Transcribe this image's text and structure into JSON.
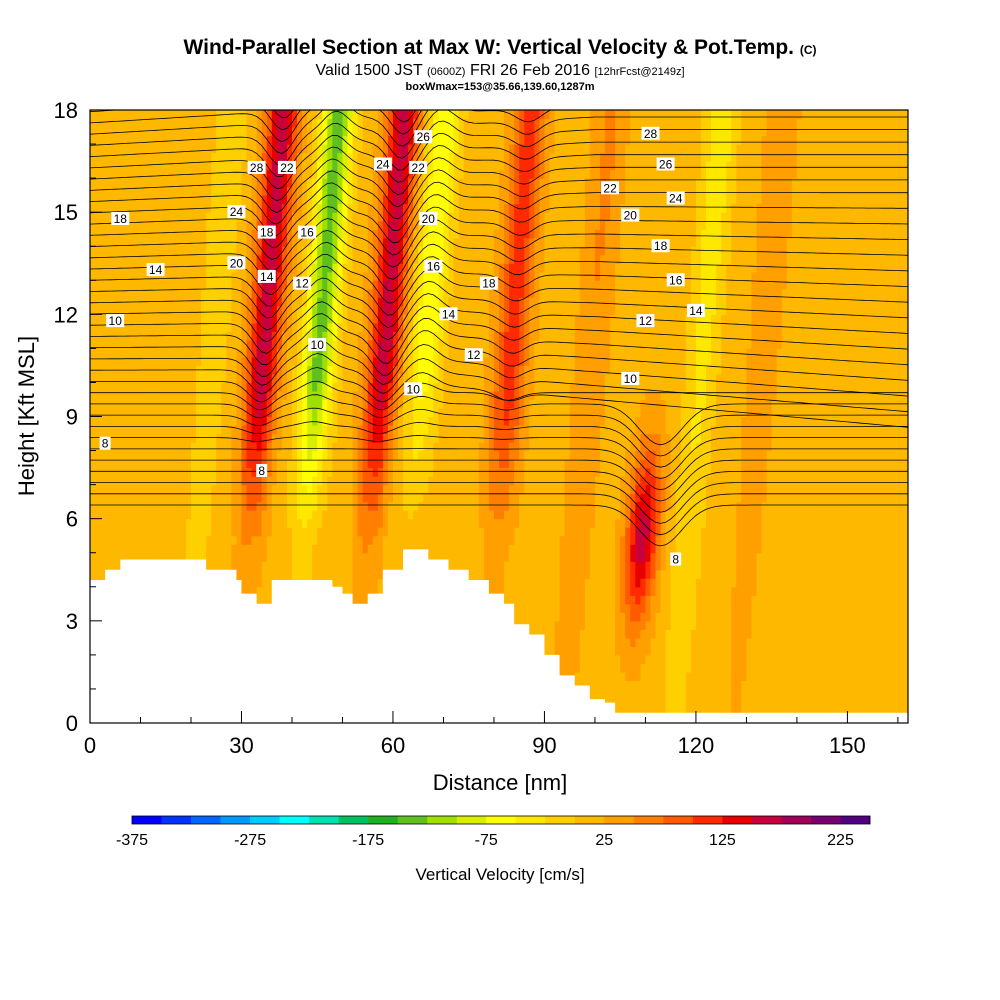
{
  "header": {
    "title": "Wind-Parallel Section at Max W: Vertical Velocity & Pot.Temp.",
    "title_tag": "(C)",
    "valid_prefix": "Valid 1500 JST",
    "valid_utc": "(0600Z)",
    "valid_date": "FRI 26 Feb 2016",
    "forecast": "[12hrFcst@2149z]",
    "box_info": "boxWmax=153@35.66,139.60,1287m"
  },
  "chart_data": {
    "type": "heatmap",
    "xlabel": "Distance [nm]",
    "ylabel": "Height [Kft MSL]",
    "xlim": [
      0,
      162
    ],
    "ylim": [
      0,
      18
    ],
    "x_ticks": [
      0,
      30,
      60,
      90,
      120,
      150
    ],
    "y_ticks": [
      0,
      3,
      6,
      9,
      12,
      15,
      18
    ],
    "colorbar": {
      "label": "Vertical Velocity [cm/s]",
      "min": -375,
      "max": 250,
      "step": 25,
      "tick_values": [
        -375,
        -275,
        -175,
        -75,
        25,
        125,
        225
      ],
      "colors": [
        "#0000ff",
        "#0033ff",
        "#0066ff",
        "#0099ff",
        "#00ccff",
        "#00ffff",
        "#00e0b0",
        "#00c060",
        "#20b020",
        "#60c020",
        "#a0e000",
        "#d8f000",
        "#ffff00",
        "#ffe800",
        "#ffd000",
        "#ffb800",
        "#ff9f00",
        "#ff8000",
        "#ff5a00",
        "#ff2a00",
        "#e80000",
        "#c8003c",
        "#a0005a",
        "#780070",
        "#500080"
      ]
    },
    "background_w": 15,
    "updraft_downdraft_bands": [
      {
        "x_center": 25,
        "w": -40
      },
      {
        "x_center": 35,
        "w": 150
      },
      {
        "x_center": 46,
        "w": -150
      },
      {
        "x_center": 59,
        "w": 150
      },
      {
        "x_center": 67,
        "w": -90
      },
      {
        "x_center": 84,
        "w": 100
      },
      {
        "x_center": 100,
        "w": 40
      },
      {
        "x_center": 113,
        "w": 150
      },
      {
        "x_center": 122,
        "w": -60
      },
      {
        "x_center": 134,
        "w": 30
      }
    ],
    "potential_temperature_contours": {
      "unit": "C",
      "labels": [
        {
          "text": "18",
          "x": 6,
          "y": 14.8
        },
        {
          "text": "14",
          "x": 13,
          "y": 13.3
        },
        {
          "text": "10",
          "x": 5,
          "y": 11.8
        },
        {
          "text": "8",
          "x": 3,
          "y": 8.2
        },
        {
          "text": "24",
          "x": 29,
          "y": 15.0
        },
        {
          "text": "20",
          "x": 29,
          "y": 13.5
        },
        {
          "text": "28",
          "x": 33,
          "y": 16.3
        },
        {
          "text": "22",
          "x": 39,
          "y": 16.3
        },
        {
          "text": "18",
          "x": 35,
          "y": 14.4
        },
        {
          "text": "14",
          "x": 35,
          "y": 13.1
        },
        {
          "text": "16",
          "x": 43,
          "y": 14.4
        },
        {
          "text": "12",
          "x": 42,
          "y": 12.9
        },
        {
          "text": "10",
          "x": 45,
          "y": 11.1
        },
        {
          "text": "8",
          "x": 34,
          "y": 7.4
        },
        {
          "text": "24",
          "x": 58,
          "y": 16.4
        },
        {
          "text": "26",
          "x": 66,
          "y": 17.2
        },
        {
          "text": "22",
          "x": 65,
          "y": 16.3
        },
        {
          "text": "20",
          "x": 67,
          "y": 14.8
        },
        {
          "text": "16",
          "x": 68,
          "y": 13.4
        },
        {
          "text": "14",
          "x": 71,
          "y": 12.0
        },
        {
          "text": "18",
          "x": 79,
          "y": 12.9
        },
        {
          "text": "12",
          "x": 76,
          "y": 10.8
        },
        {
          "text": "10",
          "x": 64,
          "y": 9.8
        },
        {
          "text": "28",
          "x": 111,
          "y": 17.3
        },
        {
          "text": "26",
          "x": 114,
          "y": 16.4
        },
        {
          "text": "24",
          "x": 116,
          "y": 15.4
        },
        {
          "text": "22",
          "x": 103,
          "y": 15.7
        },
        {
          "text": "20",
          "x": 107,
          "y": 14.9
        },
        {
          "text": "18",
          "x": 113,
          "y": 14.0
        },
        {
          "text": "16",
          "x": 116,
          "y": 13.0
        },
        {
          "text": "14",
          "x": 120,
          "y": 12.1
        },
        {
          "text": "12",
          "x": 110,
          "y": 11.8
        },
        {
          "text": "10",
          "x": 107,
          "y": 10.1
        },
        {
          "text": "8",
          "x": 116,
          "y": 4.8
        }
      ]
    },
    "terrain_top_kft": [
      {
        "x": 0,
        "h": 4.2
      },
      {
        "x": 3,
        "h": 4.5
      },
      {
        "x": 6,
        "h": 4.8
      },
      {
        "x": 23,
        "h": 4.5
      },
      {
        "x": 29,
        "h": 4.2
      },
      {
        "x": 30,
        "h": 3.8
      },
      {
        "x": 33,
        "h": 3.5
      },
      {
        "x": 36,
        "h": 4.2
      },
      {
        "x": 48,
        "h": 4.0
      },
      {
        "x": 50,
        "h": 3.8
      },
      {
        "x": 52,
        "h": 3.5
      },
      {
        "x": 55,
        "h": 3.8
      },
      {
        "x": 58,
        "h": 4.5
      },
      {
        "x": 62,
        "h": 5.1
      },
      {
        "x": 67,
        "h": 4.8
      },
      {
        "x": 71,
        "h": 4.5
      },
      {
        "x": 75,
        "h": 4.2
      },
      {
        "x": 79,
        "h": 3.8
      },
      {
        "x": 82,
        "h": 3.5
      },
      {
        "x": 84,
        "h": 2.9
      },
      {
        "x": 87,
        "h": 2.6
      },
      {
        "x": 90,
        "h": 2.0
      },
      {
        "x": 93,
        "h": 1.4
      },
      {
        "x": 96,
        "h": 1.1
      },
      {
        "x": 99,
        "h": 0.7
      },
      {
        "x": 102,
        "h": 0.6
      },
      {
        "x": 104,
        "h": 0.3
      },
      {
        "x": 162,
        "h": 0.3
      }
    ]
  }
}
